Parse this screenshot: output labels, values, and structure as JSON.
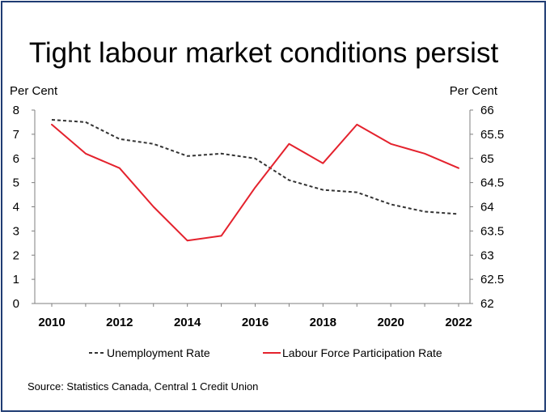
{
  "chart_data": {
    "type": "line",
    "title": "Tight labour market conditions persist",
    "y_left_label": "Per Cent",
    "y_right_label": "Per Cent",
    "y_left_range": [
      0,
      8
    ],
    "y_right_range": [
      62,
      66
    ],
    "y_left_ticks": [
      "0",
      "1",
      "2",
      "3",
      "4",
      "5",
      "6",
      "7",
      "8"
    ],
    "y_right_ticks": [
      "62",
      "62.5",
      "63",
      "63.5",
      "64",
      "64.5",
      "65",
      "65.5",
      "66"
    ],
    "x_ticks": [
      "2010",
      "2012",
      "2014",
      "2016",
      "2018",
      "2020",
      "2022"
    ],
    "x": [
      2010,
      2011,
      2012,
      2013,
      2014,
      2015,
      2016,
      2017,
      2018,
      2019,
      2020,
      2021,
      2022
    ],
    "x_range": [
      2010,
      2022
    ],
    "grid": false,
    "legend_position": "bottom",
    "series": [
      {
        "name": "Unemployment Rate",
        "axis": "left",
        "style": "dashed",
        "color": "#333333",
        "values": [
          7.6,
          7.5,
          6.8,
          6.6,
          6.1,
          6.2,
          6.0,
          5.1,
          4.7,
          4.6,
          4.1,
          3.8,
          3.7
        ]
      },
      {
        "name": "Labour Force Participation Rate",
        "axis": "right",
        "style": "solid",
        "color": "#e4222d",
        "values": [
          65.7,
          65.1,
          64.8,
          64.0,
          63.3,
          63.4,
          64.4,
          65.3,
          64.9,
          65.7,
          65.3,
          65.1,
          64.8
        ]
      }
    ],
    "source": "Source: Statistics Canada, Central 1 Credit Union"
  }
}
